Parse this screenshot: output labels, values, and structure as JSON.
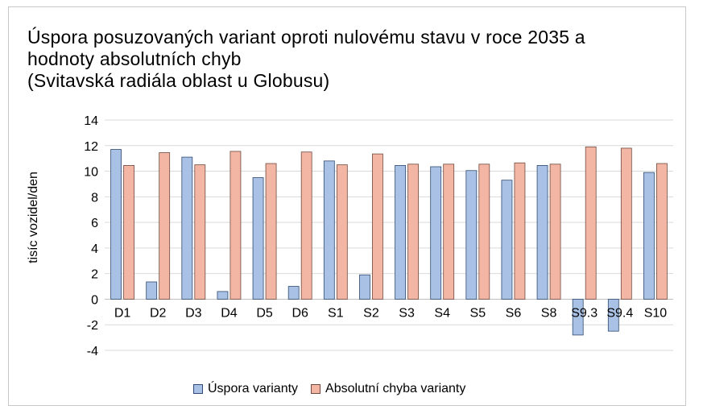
{
  "chart_data": {
    "type": "bar",
    "title_lines": [
      "Úspora posuzovaných variant oproti nulovému stavu v roce 2035 a",
      "hodnoty absolutních chyb",
      "(Svitavská radiála oblast u Globusu)"
    ],
    "ylabel": "tisíc vozidel/den",
    "xlabel": "",
    "ylim": [
      -4,
      14
    ],
    "yticks": [
      -4,
      -2,
      0,
      2,
      4,
      6,
      8,
      10,
      12,
      14
    ],
    "grid": true,
    "legend_position": "bottom",
    "categories": [
      "D1",
      "D2",
      "D3",
      "D4",
      "D5",
      "D6",
      "S1",
      "S2",
      "S3",
      "S4",
      "S5",
      "S6",
      "S8",
      "S9.3",
      "S9.4",
      "S10"
    ],
    "series": [
      {
        "name": "Úspora varianty",
        "color": "#a9c1e4",
        "stroke": "#2f4a72",
        "values": [
          11.7,
          1.35,
          11.1,
          0.6,
          9.5,
          1.0,
          10.8,
          1.9,
          10.45,
          10.35,
          10.05,
          9.3,
          10.45,
          -2.8,
          -2.5,
          9.9
        ]
      },
      {
        "name": "Absolutní chyba varianty",
        "color": "#f4b6a4",
        "stroke": "#6e4a3e",
        "values": [
          10.45,
          11.45,
          10.5,
          11.55,
          10.6,
          11.5,
          10.5,
          11.35,
          10.55,
          10.55,
          10.55,
          10.65,
          10.55,
          11.9,
          11.8,
          10.6
        ]
      }
    ]
  }
}
